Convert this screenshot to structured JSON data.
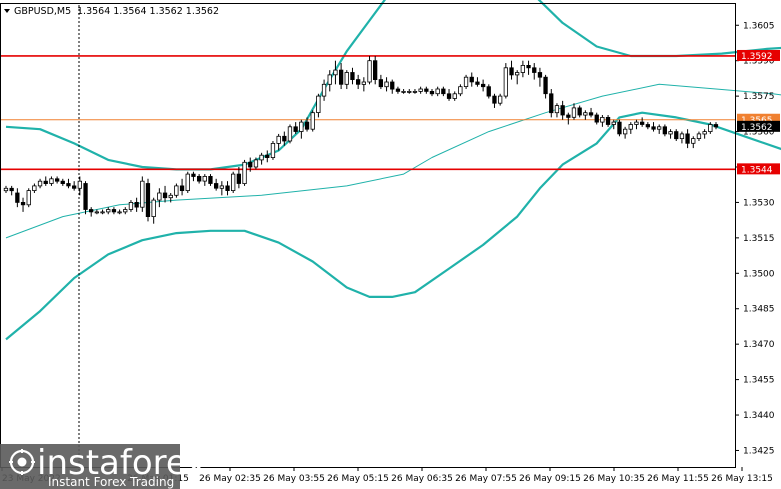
{
  "header": {
    "symbol": "GBPUSD,M5",
    "ohlc": "1.3564 1.3564 1.3562 1.3562"
  },
  "watermark": {
    "brand": "instaforex",
    "tagline": "Instant Forex Trading"
  },
  "colors": {
    "background": "#ffffff",
    "axis": "#000000",
    "candle": "#000000",
    "band": "#20b2aa",
    "level_red": "#e60000",
    "level_orange": "#f08030",
    "price_box": "#000000",
    "watermark_bg": "#5a5a5a"
  },
  "chart_data": {
    "type": "candlestick",
    "symbol": "GBPUSD",
    "timeframe": "M5",
    "ylim": [
      1.3418,
      1.3614
    ],
    "y_ticks": [
      "1.3605",
      "1.3590",
      "1.3575",
      "1.3560",
      "1.3545",
      "1.3530",
      "1.3515",
      "1.3500",
      "1.3485",
      "1.3470",
      "1.3455",
      "1.3440",
      "1.3425"
    ],
    "x_ticks": [
      "23 May 2022",
      "26 May 01:15",
      "26 May 02:35",
      "26 May 03:55",
      "26 May 05:15",
      "26 May 06:35",
      "26 May 07:55",
      "26 May 09:15",
      "26 May 10:35",
      "26 May 11:55",
      "26 May 13:15"
    ],
    "levels": [
      {
        "label": "1.3592",
        "value": 1.3592,
        "color": "#e60000"
      },
      {
        "label": "1.3565",
        "value": 1.3565,
        "color": "#f08030"
      },
      {
        "label": "1.3544",
        "value": 1.3544,
        "color": "#e60000"
      }
    ],
    "current_price": {
      "label": "1.3562",
      "value": 1.3562
    },
    "candles": [
      [
        1.3535,
        1.3537,
        1.3534,
        1.3536
      ],
      [
        1.3536,
        1.3537,
        1.3533,
        1.3535
      ],
      [
        1.3534,
        1.3536,
        1.3528,
        1.353
      ],
      [
        1.353,
        1.3532,
        1.3526,
        1.3529
      ],
      [
        1.3529,
        1.3536,
        1.3528,
        1.3535
      ],
      [
        1.3535,
        1.3538,
        1.3534,
        1.3537
      ],
      [
        1.3537,
        1.354,
        1.3536,
        1.3539
      ],
      [
        1.3539,
        1.3541,
        1.3537,
        1.3538
      ],
      [
        1.3538,
        1.3541,
        1.3537,
        1.354
      ],
      [
        1.354,
        1.3541,
        1.3538,
        1.3539
      ],
      [
        1.3539,
        1.354,
        1.3537,
        1.3538
      ],
      [
        1.3538,
        1.354,
        1.3536,
        1.3537
      ],
      [
        1.3537,
        1.3539,
        1.3535,
        1.3536
      ],
      [
        1.3536,
        1.3541,
        1.3533,
        1.3539
      ],
      [
        1.3538,
        1.3539,
        1.3525,
        1.3527
      ],
      [
        1.3527,
        1.3528,
        1.3524,
        1.3526
      ],
      [
        1.3526,
        1.3527,
        1.3525,
        1.3526
      ],
      [
        1.3526,
        1.3527,
        1.3525,
        1.3526
      ],
      [
        1.3526,
        1.3528,
        1.3525,
        1.3527
      ],
      [
        1.3527,
        1.3528,
        1.3525,
        1.3526
      ],
      [
        1.3526,
        1.3527,
        1.3525,
        1.3526
      ],
      [
        1.3526,
        1.3528,
        1.3525,
        1.3527
      ],
      [
        1.3527,
        1.3531,
        1.3526,
        1.353
      ],
      [
        1.353,
        1.3532,
        1.3526,
        1.3528
      ],
      [
        1.3528,
        1.3541,
        1.3526,
        1.3539
      ],
      [
        1.3538,
        1.354,
        1.3522,
        1.3524
      ],
      [
        1.3524,
        1.3532,
        1.3521,
        1.3531
      ],
      [
        1.3531,
        1.3536,
        1.3528,
        1.3534
      ],
      [
        1.3534,
        1.3537,
        1.353,
        1.3532
      ],
      [
        1.3532,
        1.3534,
        1.353,
        1.3533
      ],
      [
        1.3533,
        1.3538,
        1.3532,
        1.3537
      ],
      [
        1.3537,
        1.354,
        1.3533,
        1.3535
      ],
      [
        1.3535,
        1.3543,
        1.3534,
        1.3542
      ],
      [
        1.3542,
        1.3543,
        1.3539,
        1.3541
      ],
      [
        1.3541,
        1.3542,
        1.3538,
        1.3539
      ],
      [
        1.3539,
        1.3542,
        1.3537,
        1.3541
      ],
      [
        1.3541,
        1.3542,
        1.3537,
        1.3538
      ],
      [
        1.3538,
        1.354,
        1.3535,
        1.3536
      ],
      [
        1.3536,
        1.3539,
        1.3533,
        1.3537
      ],
      [
        1.3537,
        1.3539,
        1.3533,
        1.3535
      ],
      [
        1.3535,
        1.3543,
        1.3534,
        1.3542
      ],
      [
        1.3542,
        1.3545,
        1.3536,
        1.3538
      ],
      [
        1.3538,
        1.3548,
        1.3537,
        1.3547
      ],
      [
        1.3547,
        1.3549,
        1.3543,
        1.3545
      ],
      [
        1.3545,
        1.3549,
        1.3544,
        1.3548
      ],
      [
        1.3548,
        1.3551,
        1.3546,
        1.355
      ],
      [
        1.355,
        1.3552,
        1.3547,
        1.3549
      ],
      [
        1.3549,
        1.3556,
        1.3548,
        1.3555
      ],
      [
        1.3555,
        1.3559,
        1.3552,
        1.3558
      ],
      [
        1.3558,
        1.356,
        1.3554,
        1.3556
      ],
      [
        1.3556,
        1.3563,
        1.3555,
        1.3562
      ],
      [
        1.3562,
        1.3564,
        1.3559,
        1.356
      ],
      [
        1.356,
        1.3565,
        1.3557,
        1.3564
      ],
      [
        1.3564,
        1.3566,
        1.356,
        1.3561
      ],
      [
        1.3561,
        1.3569,
        1.356,
        1.3568
      ],
      [
        1.3568,
        1.3576,
        1.3566,
        1.3575
      ],
      [
        1.3575,
        1.3582,
        1.3573,
        1.358
      ],
      [
        1.358,
        1.3586,
        1.3577,
        1.3584
      ],
      [
        1.3584,
        1.359,
        1.358,
        1.3586
      ],
      [
        1.3586,
        1.3589,
        1.3578,
        1.358
      ],
      [
        1.358,
        1.3586,
        1.3578,
        1.3585
      ],
      [
        1.3585,
        1.3587,
        1.358,
        1.3582
      ],
      [
        1.3582,
        1.3584,
        1.3578,
        1.358
      ],
      [
        1.358,
        1.3583,
        1.3577,
        1.3581
      ],
      [
        1.3581,
        1.3592,
        1.358,
        1.359
      ],
      [
        1.359,
        1.3592,
        1.358,
        1.3582
      ],
      [
        1.3582,
        1.3584,
        1.3578,
        1.3579
      ],
      [
        1.3579,
        1.3583,
        1.3577,
        1.3581
      ],
      [
        1.3581,
        1.3582,
        1.3576,
        1.3578
      ],
      [
        1.3578,
        1.3579,
        1.3576,
        1.3577
      ],
      [
        1.3577,
        1.3578,
        1.3576,
        1.3577
      ],
      [
        1.3577,
        1.3578,
        1.3576,
        1.3577
      ],
      [
        1.3577,
        1.3578,
        1.3576,
        1.3577
      ],
      [
        1.3577,
        1.3579,
        1.3576,
        1.3578
      ],
      [
        1.3578,
        1.3579,
        1.3576,
        1.3577
      ],
      [
        1.3577,
        1.3578,
        1.3575,
        1.3576
      ],
      [
        1.3576,
        1.3579,
        1.3575,
        1.3578
      ],
      [
        1.3578,
        1.3579,
        1.3575,
        1.3576
      ],
      [
        1.3576,
        1.3578,
        1.3573,
        1.3574
      ],
      [
        1.3574,
        1.3577,
        1.3573,
        1.3576
      ],
      [
        1.3576,
        1.358,
        1.3575,
        1.3579
      ],
      [
        1.3579,
        1.3584,
        1.3578,
        1.3583
      ],
      [
        1.3583,
        1.3585,
        1.3579,
        1.3581
      ],
      [
        1.3581,
        1.3583,
        1.3579,
        1.358
      ],
      [
        1.358,
        1.3582,
        1.3577,
        1.3579
      ],
      [
        1.3579,
        1.358,
        1.3574,
        1.3575
      ],
      [
        1.3575,
        1.3576,
        1.357,
        1.3572
      ],
      [
        1.3572,
        1.3576,
        1.3571,
        1.3575
      ],
      [
        1.3575,
        1.3589,
        1.3574,
        1.3587
      ],
      [
        1.3587,
        1.359,
        1.3582,
        1.3584
      ],
      [
        1.3584,
        1.3586,
        1.358,
        1.3585
      ],
      [
        1.3585,
        1.359,
        1.3583,
        1.3588
      ],
      [
        1.3588,
        1.359,
        1.3584,
        1.3587
      ],
      [
        1.3587,
        1.3589,
        1.3582,
        1.3585
      ],
      [
        1.3585,
        1.3587,
        1.3579,
        1.3583
      ],
      [
        1.3583,
        1.3584,
        1.3574,
        1.3576
      ],
      [
        1.3576,
        1.3578,
        1.3566,
        1.3568
      ],
      [
        1.3568,
        1.3572,
        1.3566,
        1.3571
      ],
      [
        1.3571,
        1.3573,
        1.3565,
        1.3567
      ],
      [
        1.3567,
        1.3568,
        1.3563,
        1.3566
      ],
      [
        1.3566,
        1.3572,
        1.3565,
        1.357
      ],
      [
        1.357,
        1.3571,
        1.3566,
        1.3567
      ],
      [
        1.3567,
        1.3569,
        1.3565,
        1.3568
      ],
      [
        1.3568,
        1.357,
        1.3566,
        1.3567
      ],
      [
        1.3567,
        1.3568,
        1.3563,
        1.3564
      ],
      [
        1.3564,
        1.3567,
        1.3562,
        1.3566
      ],
      [
        1.3566,
        1.3567,
        1.3562,
        1.3563
      ],
      [
        1.3563,
        1.3565,
        1.3561,
        1.3564
      ],
      [
        1.3564,
        1.3565,
        1.3558,
        1.3559
      ],
      [
        1.3559,
        1.3562,
        1.3557,
        1.3561
      ],
      [
        1.3561,
        1.3564,
        1.3559,
        1.3563
      ],
      [
        1.3563,
        1.3565,
        1.3561,
        1.3564
      ],
      [
        1.3564,
        1.3566,
        1.3562,
        1.3563
      ],
      [
        1.3563,
        1.3564,
        1.3561,
        1.3562
      ],
      [
        1.3562,
        1.3564,
        1.356,
        1.3561
      ],
      [
        1.3561,
        1.3563,
        1.3559,
        1.3562
      ],
      [
        1.3562,
        1.3563,
        1.3558,
        1.3559
      ],
      [
        1.3559,
        1.3561,
        1.3557,
        1.356
      ],
      [
        1.356,
        1.3561,
        1.3556,
        1.3557
      ],
      [
        1.3557,
        1.356,
        1.3555,
        1.3559
      ],
      [
        1.3559,
        1.3561,
        1.3553,
        1.3555
      ],
      [
        1.3555,
        1.3558,
        1.3553,
        1.3557
      ],
      [
        1.3557,
        1.356,
        1.3556,
        1.3559
      ],
      [
        1.3559,
        1.3561,
        1.3557,
        1.356
      ],
      [
        1.356,
        1.3564,
        1.3559,
        1.3563
      ],
      [
        1.3563,
        1.3564,
        1.3561,
        1.3562
      ]
    ],
    "bands": {
      "middle": [
        [
          0,
          1.3515
        ],
        [
          10,
          1.3524
        ],
        [
          20,
          1.3529
        ],
        [
          30,
          1.3531
        ],
        [
          45,
          1.3533
        ],
        [
          60,
          1.3537
        ],
        [
          70,
          1.3542
        ],
        [
          75,
          1.3549
        ],
        [
          85,
          1.356
        ],
        [
          95,
          1.3568
        ],
        [
          105,
          1.3575
        ],
        [
          115,
          1.358
        ],
        [
          125,
          1.3578
        ],
        [
          135,
          1.3576
        ],
        [
          145,
          1.3573
        ],
        [
          150,
          1.3571
        ]
      ],
      "upper": [
        [
          0,
          1.3562
        ],
        [
          6,
          1.3561
        ],
        [
          12,
          1.3555
        ],
        [
          18,
          1.3548
        ],
        [
          24,
          1.3545
        ],
        [
          30,
          1.3544
        ],
        [
          36,
          1.3544
        ],
        [
          42,
          1.3546
        ],
        [
          48,
          1.3552
        ],
        [
          52,
          1.3561
        ],
        [
          56,
          1.3578
        ],
        [
          60,
          1.3594
        ],
        [
          64,
          1.3607
        ],
        [
          68,
          1.362
        ],
        [
          74,
          1.363
        ],
        [
          84,
          1.363
        ],
        [
          92,
          1.362
        ],
        [
          98,
          1.3606
        ],
        [
          104,
          1.3596
        ],
        [
          110,
          1.3592
        ],
        [
          118,
          1.3592
        ],
        [
          126,
          1.3593
        ],
        [
          134,
          1.3595
        ],
        [
          140,
          1.3596
        ],
        [
          146,
          1.3594
        ]
      ],
      "lower": [
        [
          0,
          1.3472
        ],
        [
          6,
          1.3484
        ],
        [
          12,
          1.3498
        ],
        [
          18,
          1.3508
        ],
        [
          24,
          1.3514
        ],
        [
          30,
          1.3517
        ],
        [
          36,
          1.3518
        ],
        [
          42,
          1.3518
        ],
        [
          48,
          1.3513
        ],
        [
          54,
          1.3505
        ],
        [
          60,
          1.3494
        ],
        [
          64,
          1.349
        ],
        [
          68,
          1.349
        ],
        [
          72,
          1.3492
        ],
        [
          78,
          1.3502
        ],
        [
          84,
          1.3512
        ],
        [
          90,
          1.3524
        ],
        [
          94,
          1.3536
        ],
        [
          98,
          1.3546
        ],
        [
          104,
          1.3555
        ],
        [
          108,
          1.3566
        ],
        [
          112,
          1.3568
        ],
        [
          118,
          1.3566
        ],
        [
          124,
          1.3563
        ],
        [
          130,
          1.3558
        ],
        [
          136,
          1.3553
        ],
        [
          142,
          1.3548
        ],
        [
          146,
          1.3545
        ]
      ]
    }
  }
}
